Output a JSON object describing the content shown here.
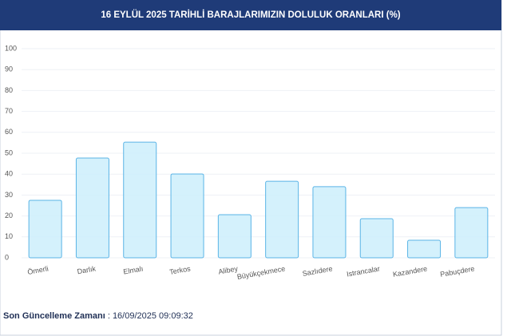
{
  "chart_data": {
    "type": "bar",
    "title": "16 EYLÜL 2025 TARİHLİ BARAJLARIMIZIN DOLULUK ORANLARI (%)",
    "categories": [
      "Ömerli",
      "Darlık",
      "Elmalı",
      "Terkos",
      "Alibey",
      "Büyükçekmece",
      "Sazlıdere",
      "Istrancalar",
      "Kazandere",
      "Pabuçdere"
    ],
    "values": [
      27.5,
      47.7,
      55.3,
      40.1,
      20.6,
      36.6,
      34,
      18.7,
      8.4,
      24
    ],
    "color": "#cdeefc",
    "border_color": "#5ab4e6",
    "ylim": [
      0,
      100
    ],
    "yticks": [
      0,
      10,
      20,
      30,
      40,
      50,
      60,
      70,
      80,
      90,
      100
    ],
    "grid": true
  },
  "footer": {
    "label": "Son Güncelleme Zamanı",
    "value": ": 16/09/2025 09:09:32"
  }
}
